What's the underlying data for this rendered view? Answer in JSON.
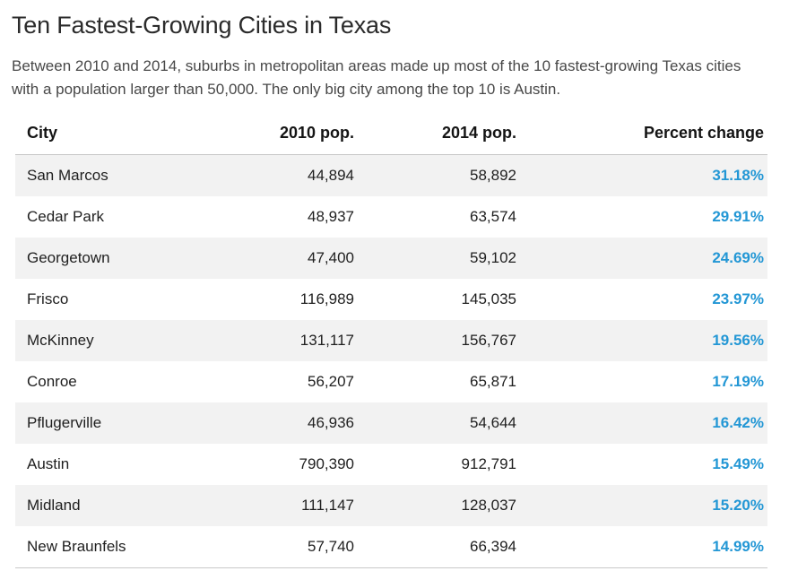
{
  "page": {
    "title": "Ten Fastest-Growing Cities in Texas",
    "subtitle": "Between 2010 and 2014, suburbs in metropolitan areas made up most of the 10 fastest-growing Texas cities with a population larger than 50,000. The only big city among the top 10 is Austin."
  },
  "table": {
    "columns": [
      "City",
      "2010 pop.",
      "2014 pop.",
      "Percent change"
    ],
    "rows": [
      {
        "city": "San Marcos",
        "pop2010": "44,894",
        "pop2014": "58,892",
        "pct": "31.18%"
      },
      {
        "city": "Cedar Park",
        "pop2010": "48,937",
        "pop2014": "63,574",
        "pct": "29.91%"
      },
      {
        "city": "Georgetown",
        "pop2010": "47,400",
        "pop2014": "59,102",
        "pct": "24.69%"
      },
      {
        "city": "Frisco",
        "pop2010": "116,989",
        "pop2014": "145,035",
        "pct": "23.97%"
      },
      {
        "city": "McKinney",
        "pop2010": "131,117",
        "pop2014": "156,767",
        "pct": "19.56%"
      },
      {
        "city": "Conroe",
        "pop2010": "56,207",
        "pop2014": "65,871",
        "pct": "17.19%"
      },
      {
        "city": "Pflugerville",
        "pop2010": "46,936",
        "pop2014": "54,644",
        "pct": "16.42%"
      },
      {
        "city": "Austin",
        "pop2010": "790,390",
        "pop2014": "912,791",
        "pct": "15.49%"
      },
      {
        "city": "Midland",
        "pop2010": "111,147",
        "pop2014": "128,037",
        "pct": "15.20%"
      },
      {
        "city": "New Braunfels",
        "pop2010": "57,740",
        "pop2014": "66,394",
        "pct": "14.99%"
      }
    ]
  },
  "colors": {
    "accent_blue": "#2397d5",
    "row_stripe": "#f2f2f2",
    "border": "#c9c9c9"
  },
  "chart_data": {
    "type": "table",
    "title": "Ten Fastest-Growing Cities in Texas",
    "subtitle": "Between 2010 and 2014, suburbs in metropolitan areas made up most of the 10 fastest-growing Texas cities with a population larger than 50,000. The only big city among the top 10 is Austin.",
    "columns": [
      "City",
      "2010 pop.",
      "2014 pop.",
      "Percent change"
    ],
    "rows": [
      [
        "San Marcos",
        44894,
        58892,
        31.18
      ],
      [
        "Cedar Park",
        48937,
        63574,
        29.91
      ],
      [
        "Georgetown",
        47400,
        59102,
        24.69
      ],
      [
        "Frisco",
        116989,
        145035,
        23.97
      ],
      [
        "McKinney",
        131117,
        156767,
        19.56
      ],
      [
        "Conroe",
        56207,
        65871,
        17.19
      ],
      [
        "Pflugerville",
        46936,
        54644,
        16.42
      ],
      [
        "Austin",
        790390,
        912791,
        15.49
      ],
      [
        "Midland",
        111147,
        128037,
        15.2
      ],
      [
        "New Braunfels",
        57740,
        66394,
        14.99
      ]
    ],
    "layout_hints": {
      "striped_rows": "odd",
      "percent_column_color": "#2397d5",
      "numeric_alignment": "right"
    }
  }
}
